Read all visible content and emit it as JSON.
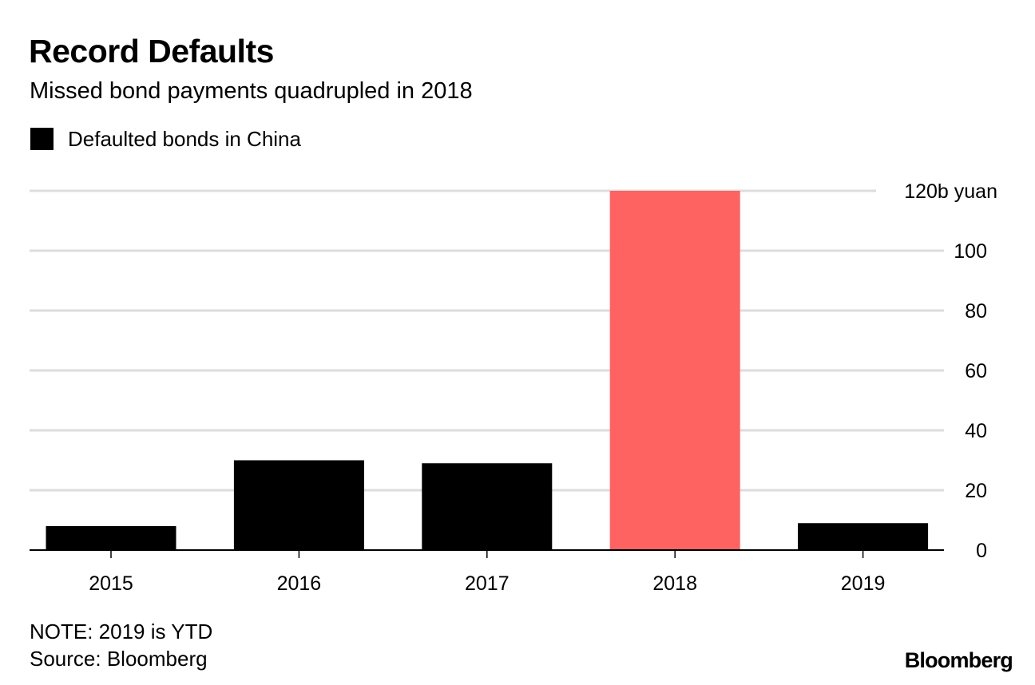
{
  "chart_data": {
    "type": "bar",
    "title": "Record Defaults",
    "subtitle": "Missed bond payments quadrupled in 2018",
    "legend": [
      {
        "label": "Defaulted bonds in China",
        "color": "#000000"
      }
    ],
    "categories": [
      "2015",
      "2016",
      "2017",
      "2018",
      "2019"
    ],
    "series": [
      {
        "name": "Defaulted bonds in China",
        "values": [
          8,
          30,
          29,
          120,
          9
        ]
      }
    ],
    "highlight": {
      "category": "2018",
      "color": "#ff6361"
    },
    "bar_color": "#000000",
    "ylim": [
      0,
      120
    ],
    "yticks": [
      0,
      20,
      40,
      60,
      80,
      100,
      120
    ],
    "ytick_labels": [
      "0",
      "20",
      "40",
      "60",
      "80",
      "100",
      "120b yuan"
    ],
    "xlabel": "",
    "ylabel": "",
    "grid": true,
    "grid_color": "#dddddd",
    "note": "NOTE: 2019 is YTD",
    "source": "Source: Bloomberg",
    "brand": "Bloomberg"
  }
}
